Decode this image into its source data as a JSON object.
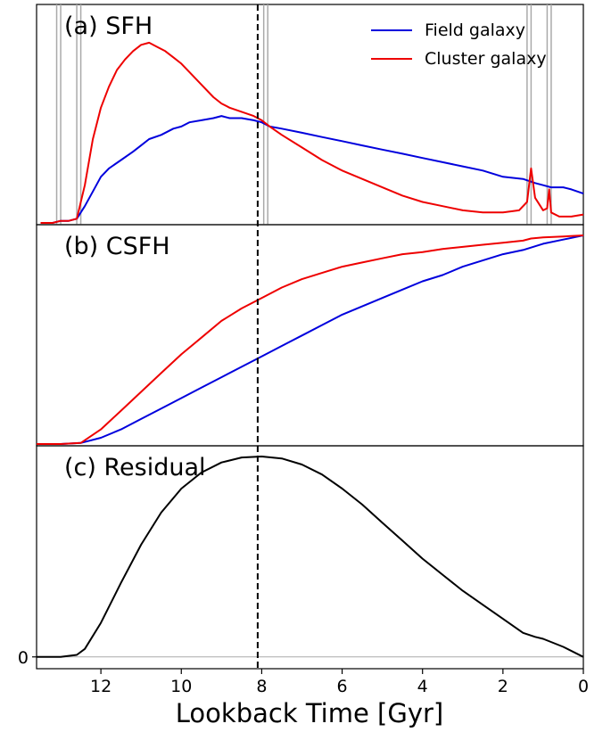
{
  "chart_data": {
    "type": "line",
    "xlabel": "Lookback Time [Gyr]",
    "xlim": [
      13.6,
      0
    ],
    "x_ticks": [
      12,
      10,
      8,
      6,
      4,
      2,
      0
    ],
    "vline_x": 8.1,
    "colors": {
      "field": "#0000dd",
      "cluster": "#ee0000",
      "residual": "#000000",
      "marker": "#aaaaaa"
    },
    "legend": {
      "placement": "top-right",
      "entries": [
        "Field galaxy",
        "Cluster galaxy"
      ]
    },
    "panels": [
      {
        "label": "(a) SFH",
        "ylim": [
          0,
          1.0
        ],
        "marker_lines_x": [
          13.1,
          13.0,
          12.6,
          12.5,
          7.95,
          7.85,
          1.4,
          1.3,
          0.9,
          0.8
        ],
        "series": [
          {
            "name": "Field galaxy",
            "x": [
              13.5,
              13.2,
              13.0,
              12.8,
              12.6,
              12.4,
              12.2,
              12.0,
              11.8,
              11.5,
              11.2,
              11.0,
              10.8,
              10.5,
              10.2,
              10.0,
              9.8,
              9.5,
              9.2,
              9.0,
              8.8,
              8.5,
              8.2,
              8.0,
              7.8,
              7.5,
              7.0,
              6.5,
              6.0,
              5.5,
              5.0,
              4.5,
              4.0,
              3.5,
              3.0,
              2.5,
              2.0,
              1.5,
              1.2,
              1.0,
              0.8,
              0.5,
              0.3,
              0.0
            ],
            "y": [
              0.0,
              0.0,
              0.01,
              0.01,
              0.02,
              0.08,
              0.15,
              0.22,
              0.26,
              0.3,
              0.34,
              0.37,
              0.4,
              0.42,
              0.45,
              0.46,
              0.48,
              0.49,
              0.5,
              0.51,
              0.5,
              0.5,
              0.49,
              0.48,
              0.46,
              0.45,
              0.43,
              0.41,
              0.39,
              0.37,
              0.35,
              0.33,
              0.31,
              0.29,
              0.27,
              0.25,
              0.22,
              0.21,
              0.19,
              0.18,
              0.17,
              0.17,
              0.16,
              0.14
            ]
          },
          {
            "name": "Cluster galaxy",
            "x": [
              13.5,
              13.2,
              13.0,
              12.8,
              12.6,
              12.4,
              12.2,
              12.0,
              11.8,
              11.6,
              11.4,
              11.2,
              11.0,
              10.8,
              10.6,
              10.4,
              10.2,
              10.0,
              9.8,
              9.5,
              9.2,
              9.0,
              8.8,
              8.5,
              8.2,
              8.0,
              7.8,
              7.5,
              7.0,
              6.5,
              6.0,
              5.5,
              5.0,
              4.5,
              4.0,
              3.5,
              3.0,
              2.5,
              2.0,
              1.6,
              1.4,
              1.3,
              1.2,
              1.0,
              0.9,
              0.85,
              0.8,
              0.6,
              0.3,
              0.0
            ],
            "y": [
              0.0,
              0.0,
              0.01,
              0.01,
              0.02,
              0.18,
              0.4,
              0.55,
              0.65,
              0.73,
              0.78,
              0.82,
              0.85,
              0.86,
              0.84,
              0.82,
              0.79,
              0.76,
              0.72,
              0.66,
              0.6,
              0.57,
              0.55,
              0.53,
              0.51,
              0.49,
              0.46,
              0.42,
              0.36,
              0.3,
              0.25,
              0.21,
              0.17,
              0.13,
              0.1,
              0.08,
              0.06,
              0.05,
              0.05,
              0.06,
              0.1,
              0.26,
              0.12,
              0.06,
              0.07,
              0.16,
              0.05,
              0.03,
              0.03,
              0.04
            ]
          }
        ]
      },
      {
        "label": "(b) CSFH",
        "ylim": [
          0,
          1.0
        ],
        "series": [
          {
            "name": "Field galaxy",
            "x": [
              13.6,
              13.0,
              12.5,
              12.0,
              11.5,
              11.0,
              10.5,
              10.0,
              9.5,
              9.0,
              8.5,
              8.0,
              7.5,
              7.0,
              6.5,
              6.0,
              5.5,
              5.0,
              4.5,
              4.0,
              3.5,
              3.0,
              2.5,
              2.0,
              1.5,
              1.0,
              0.5,
              0.0
            ],
            "y": [
              0.0,
              0.0,
              0.005,
              0.03,
              0.07,
              0.12,
              0.17,
              0.22,
              0.27,
              0.32,
              0.37,
              0.42,
              0.47,
              0.52,
              0.57,
              0.62,
              0.66,
              0.7,
              0.74,
              0.78,
              0.81,
              0.85,
              0.88,
              0.91,
              0.93,
              0.96,
              0.98,
              1.0
            ]
          },
          {
            "name": "Cluster galaxy",
            "x": [
              13.6,
              13.0,
              12.5,
              12.0,
              11.5,
              11.0,
              10.5,
              10.0,
              9.5,
              9.0,
              8.5,
              8.0,
              7.5,
              7.0,
              6.5,
              6.0,
              5.5,
              5.0,
              4.5,
              4.0,
              3.5,
              3.0,
              2.5,
              2.0,
              1.5,
              1.3,
              1.0,
              0.5,
              0.0
            ],
            "y": [
              0.0,
              0.0,
              0.005,
              0.07,
              0.16,
              0.25,
              0.34,
              0.43,
              0.51,
              0.59,
              0.65,
              0.7,
              0.75,
              0.79,
              0.82,
              0.85,
              0.87,
              0.89,
              0.91,
              0.92,
              0.935,
              0.945,
              0.955,
              0.965,
              0.975,
              0.985,
              0.99,
              0.995,
              1.0
            ]
          }
        ]
      },
      {
        "label": "(c) Residual",
        "ylim": [
          -0.05,
          1.0
        ],
        "zero_line": true,
        "y_ticks": [
          0
        ],
        "series": [
          {
            "name": "",
            "x": [
              13.6,
              13.0,
              12.6,
              12.4,
              12.0,
              11.5,
              11.0,
              10.5,
              10.0,
              9.5,
              9.0,
              8.5,
              8.0,
              7.5,
              7.0,
              6.5,
              6.0,
              5.5,
              5.0,
              4.5,
              4.0,
              3.5,
              3.0,
              2.5,
              2.0,
              1.5,
              1.2,
              1.0,
              0.5,
              0.0
            ],
            "y": [
              0.0,
              0.0,
              0.01,
              0.04,
              0.17,
              0.37,
              0.56,
              0.72,
              0.84,
              0.92,
              0.97,
              0.995,
              1.0,
              0.99,
              0.96,
              0.91,
              0.84,
              0.76,
              0.67,
              0.58,
              0.49,
              0.41,
              0.33,
              0.26,
              0.19,
              0.12,
              0.1,
              0.09,
              0.05,
              0.0
            ]
          }
        ]
      }
    ]
  }
}
